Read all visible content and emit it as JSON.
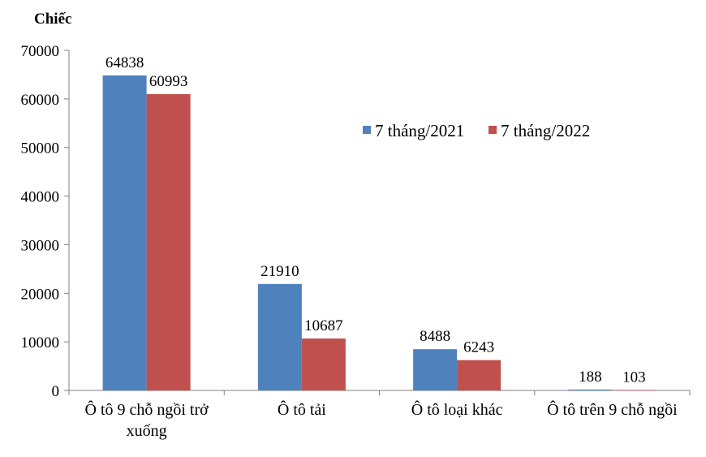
{
  "chart_data": {
    "type": "bar",
    "unit_label": "Chiếc",
    "categories": [
      [
        "Ô tô 9 chỗ ngồi trở",
        "xuống"
      ],
      [
        "Ô tô tải"
      ],
      [
        "Ô tô loại khác"
      ],
      [
        "Ô tô trên 9 chỗ ngồi"
      ]
    ],
    "series": [
      {
        "name": "7 tháng/2021",
        "color": "#4F81BD",
        "values": [
          64838,
          21910,
          8488,
          188
        ]
      },
      {
        "name": "7 tháng/2022",
        "color": "#C0504D",
        "values": [
          60993,
          10687,
          6243,
          103
        ]
      }
    ],
    "ylim": [
      0,
      70000
    ],
    "yticks": [
      "0",
      "10000",
      "20000",
      "30000",
      "40000",
      "50000",
      "60000",
      "70000"
    ],
    "grid": false,
    "legend_position": "top-right"
  }
}
